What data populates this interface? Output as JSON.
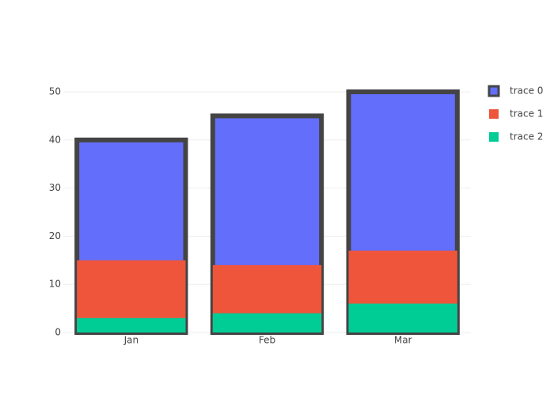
{
  "chart_data": {
    "type": "bar",
    "barmode": "overlay",
    "categories": [
      "Jan",
      "Feb",
      "Mar"
    ],
    "series": [
      {
        "name": "trace 0",
        "color": "#636efa",
        "line_color": "#444444",
        "line_width": 6,
        "values": [
          40,
          45,
          50
        ]
      },
      {
        "name": "trace 1",
        "color": "#ef553b",
        "values": [
          15,
          14,
          17
        ]
      },
      {
        "name": "trace 2",
        "color": "#00cc96",
        "values": [
          3,
          4,
          6
        ]
      }
    ],
    "ylim": [
      0,
      52.63
    ],
    "yticks": [
      0,
      10,
      20,
      30,
      40,
      50
    ],
    "grid": true
  }
}
